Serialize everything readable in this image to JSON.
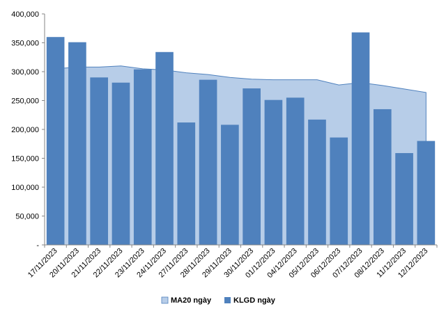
{
  "chart_data": {
    "type": "bar",
    "categories": [
      "17/11/2023",
      "20/11/2023",
      "21/11/2023",
      "22/11/2023",
      "23/11/2023",
      "24/11/2023",
      "27/11/2023",
      "28/11/2023",
      "29/11/2023",
      "30/11/2023",
      "01/12/2023",
      "04/12/2023",
      "05/12/2023",
      "06/12/2023",
      "07/12/2023",
      "08/12/2023",
      "11/12/2023",
      "12/12/2023"
    ],
    "series": [
      {
        "name": "MA20 ngày",
        "kind": "area",
        "color": "#b7cde8",
        "stroke": "#4f81bd",
        "values": [
          305000,
          308000,
          308000,
          310000,
          305000,
          303000,
          298000,
          295000,
          290000,
          287000,
          286000,
          286000,
          286000,
          277000,
          281000,
          276000,
          270000,
          264000
        ]
      },
      {
        "name": "KLGD ngày",
        "kind": "bar",
        "color": "#4f81bd",
        "values": [
          360000,
          351000,
          290000,
          281000,
          304000,
          334000,
          212000,
          286000,
          208000,
          271000,
          251000,
          255000,
          217000,
          186000,
          368000,
          235000,
          159000,
          180000
        ]
      }
    ],
    "yticks": [
      "-",
      "50,000",
      "100,000",
      "150,000",
      "200,000",
      "250,000",
      "300,000",
      "350,000",
      "400,000"
    ],
    "ylim": [
      0,
      400000
    ],
    "legend_position": "bottom",
    "grid": false
  }
}
